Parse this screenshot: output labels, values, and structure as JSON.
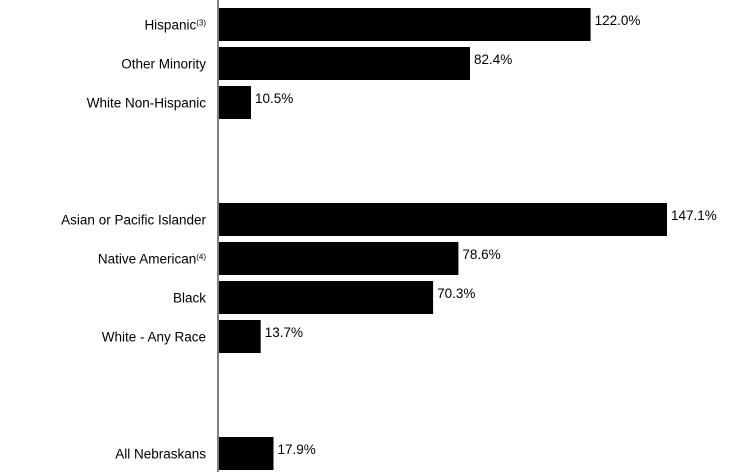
{
  "chart_data": {
    "type": "bar",
    "orientation": "horizontal",
    "groups": [
      {
        "items": [
          {
            "label": "Hispanic",
            "sup": "(3)",
            "value": 122.0,
            "value_label": "122.0%"
          },
          {
            "label": "Other Minority",
            "sup": "",
            "value": 82.4,
            "value_label": "82.4%"
          },
          {
            "label": "White Non-Hispanic",
            "sup": "",
            "value": 10.5,
            "value_label": "10.5%"
          }
        ]
      },
      {
        "items": [
          {
            "label": "Asian or Pacific Islander",
            "sup": "",
            "value": 147.1,
            "value_label": "147.1%"
          },
          {
            "label": "Native American",
            "sup": "(4)",
            "value": 78.6,
            "value_label": "78.6%"
          },
          {
            "label": "Black",
            "sup": "",
            "value": 70.3,
            "value_label": "70.3%"
          },
          {
            "label": "White - Any Race",
            "sup": "",
            "value": 13.7,
            "value_label": "13.7%"
          }
        ]
      },
      {
        "items": [
          {
            "label": "All Nebraskans",
            "sup": "",
            "value": 17.9,
            "value_label": "17.9%"
          }
        ]
      }
    ],
    "title": "",
    "xlabel": "",
    "ylabel": "",
    "xlim": [
      0,
      150
    ],
    "grid": false,
    "legend": "none",
    "bar_color": "#000000"
  }
}
